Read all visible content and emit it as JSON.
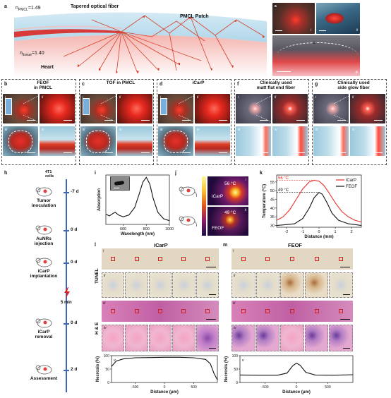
{
  "panel_a": {
    "label": "a",
    "fiber_label": "Tapered optical fiber",
    "pmcl_label": "PMCL Patch",
    "heart_label": "Heart",
    "n_pmcl": "n",
    "n_pmcl_sub": "PMCL",
    "n_pmcl_val": "=1.49",
    "n_tissue": "n",
    "n_tissue_sub": "tissue",
    "n_tissue_val": "=1.40",
    "photo_labels": [
      "a",
      "i",
      "ii",
      "iii"
    ]
  },
  "panels_bg": [
    {
      "label": "b",
      "title": "FEOF\nin PMCL"
    },
    {
      "label": "c",
      "title": "TOF in PMCL"
    },
    {
      "label": "d",
      "title": "iCarP"
    },
    {
      "label": "f",
      "title": "Clinically used\nmatt flat end fiber"
    },
    {
      "label": "g",
      "title": "Clinically used\nside glow fiber"
    }
  ],
  "tile_numerals": [
    "i",
    "ii",
    "iii",
    "iv"
  ],
  "panel_h": {
    "label": "h",
    "cells": "4T1\ncells",
    "steps": [
      {
        "name": "Tumor\ninoculation",
        "day": "-7 d"
      },
      {
        "name": "AuNRs\ninjection",
        "day": "0 d"
      },
      {
        "name": "iCarP\nimplantation",
        "day": "0 d"
      },
      {
        "name": "iCarP\nremoval",
        "day": "0 d"
      },
      {
        "name": "Assessment",
        "day": "2 d"
      }
    ],
    "duration": "5 min"
  },
  "panel_i": {
    "label": "i",
    "chart_data": {
      "type": "line",
      "xlabel": "Wavelength (nm)",
      "ylabel": "Absorption",
      "xlim": [
        450,
        1000
      ],
      "x_ticks": [
        600,
        800,
        1000
      ],
      "x": [
        450,
        480,
        510,
        530,
        560,
        600,
        650,
        700,
        740,
        770,
        800,
        830,
        860,
        900,
        950,
        1000
      ],
      "y": [
        0.22,
        0.18,
        0.23,
        0.26,
        0.2,
        0.16,
        0.2,
        0.36,
        0.66,
        0.9,
        1.0,
        0.86,
        0.55,
        0.26,
        0.12,
        0.08
      ]
    }
  },
  "panel_j": {
    "label": "j",
    "readouts": [
      {
        "numeral": "i",
        "temp": "56 °C",
        "name": "iCarP"
      },
      {
        "numeral": "ii",
        "temp": "49 °C",
        "name": "FEOF"
      }
    ]
  },
  "panel_k": {
    "label": "k",
    "chart_data": {
      "type": "line",
      "xlabel": "Distance (mm)",
      "ylabel": "Temperature (°C)",
      "xlim": [
        -2.6,
        2.6
      ],
      "ylim": [
        29,
        59
      ],
      "x_ticks": [
        -2,
        -1,
        0,
        1,
        2
      ],
      "y_ticks": [
        30,
        35,
        40,
        45,
        50,
        55
      ],
      "annotations": [
        "56 °C",
        "49 °C"
      ],
      "series": [
        {
          "name": "iCarP",
          "color": "#e8302a",
          "x": [
            -2.6,
            -2.2,
            -1.8,
            -1.4,
            -1.0,
            -0.6,
            -0.3,
            0,
            0.3,
            0.6,
            1.0,
            1.4,
            1.8,
            2.2,
            2.6
          ],
          "y": [
            33,
            35,
            39,
            45,
            51,
            55,
            56,
            55.5,
            53,
            49,
            43,
            38,
            35,
            33,
            32
          ]
        },
        {
          "name": "FEOF",
          "color": "#111111",
          "x": [
            -2.6,
            -2.0,
            -1.5,
            -1.0,
            -0.6,
            -0.3,
            0,
            0.2,
            0.5,
            0.8,
            1.2,
            1.8,
            2.6
          ],
          "y": [
            30,
            30.5,
            31,
            34,
            40,
            46,
            49,
            48,
            43,
            37,
            33,
            31,
            30
          ]
        }
      ]
    }
  },
  "panel_l": {
    "label": "l",
    "title": "iCarP",
    "row_labels": [
      "TUNEL",
      "H & E"
    ],
    "numerals": [
      "i",
      "ii",
      "iii",
      "iv",
      "v"
    ],
    "chart_data": {
      "type": "line",
      "xlabel": "Distance (μm)",
      "ylabel": "Necrosis (%)",
      "xlim": [
        -900,
        900
      ],
      "ylim": [
        0,
        100
      ],
      "x_ticks": [
        -500,
        0,
        500
      ],
      "y_ticks": [
        0,
        50,
        100
      ],
      "x": [
        -900,
        -820,
        -700,
        -500,
        -250,
        0,
        250,
        500,
        700,
        780,
        840,
        900
      ],
      "y": [
        60,
        80,
        88,
        92,
        93,
        94,
        94,
        92,
        86,
        70,
        35,
        10
      ]
    }
  },
  "panel_m": {
    "label": "m",
    "title": "FEOF",
    "numerals": [
      "i",
      "ii",
      "iii",
      "iv",
      "v"
    ],
    "chart_data": {
      "type": "line",
      "xlabel": "Distance (μm)",
      "ylabel": "Necrosis (%)",
      "xlim": [
        -900,
        900
      ],
      "ylim": [
        0,
        100
      ],
      "x_ticks": [
        -500,
        0,
        500
      ],
      "y_ticks": [
        0,
        50,
        100
      ],
      "x": [
        -900,
        -600,
        -300,
        -150,
        -60,
        0,
        60,
        150,
        300,
        600,
        900
      ],
      "y": [
        28,
        27,
        27,
        35,
        62,
        72,
        64,
        38,
        28,
        27,
        29
      ]
    }
  }
}
